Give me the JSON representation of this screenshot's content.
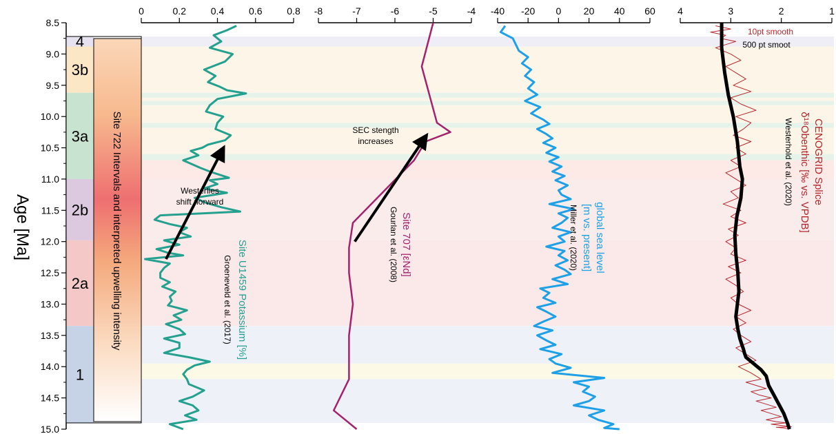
{
  "chart_data": {
    "type": "line",
    "ylabel": "Age [Ma]",
    "ylim": [
      8.5,
      15.0
    ],
    "y_ticks": [
      "8.5",
      "9.0",
      "9.5",
      "10.0",
      "10.5",
      "11.0",
      "11.5",
      "12.0",
      "12.5",
      "13.0",
      "13.5",
      "14.0",
      "14.5",
      "15.0"
    ],
    "zones": [
      {
        "label": "4",
        "from": 8.72,
        "to": 8.88,
        "color": "#e6e2ef"
      },
      {
        "label": "3b",
        "from": 8.88,
        "to": 9.62,
        "color": "#fbe6c5"
      },
      {
        "label": "3a",
        "from": 9.62,
        "to": 11.0,
        "color": "#c8e3cf"
      },
      {
        "label": "2b",
        "from": 11.0,
        "to": 11.98,
        "color": "#ddc9df"
      },
      {
        "label": "2a",
        "from": 11.98,
        "to": 13.35,
        "color": "#f4c8c6"
      },
      {
        "label": "1",
        "from": 13.35,
        "to": 14.9,
        "color": "#c6d2e6"
      }
    ],
    "intensity_bar_label": "Site 722 Intervals and interpreted upwelling intensity",
    "intensity_gradient": [
      {
        "stop": 0.0,
        "color": "#fbd7b8"
      },
      {
        "stop": 0.2,
        "color": "#f7b98e"
      },
      {
        "stop": 0.42,
        "color": "#ee6f70"
      },
      {
        "stop": 0.58,
        "color": "#f4a97c"
      },
      {
        "stop": 0.8,
        "color": "#fbdcc2"
      },
      {
        "stop": 1.0,
        "color": "#ffffff"
      }
    ],
    "panels": [
      {
        "id": "potassium",
        "ticks": [
          "0",
          "0.2",
          "0.4",
          "0.6",
          "0.8"
        ],
        "xlim": [
          0,
          0.8
        ],
        "series_label": "Site U1459 Potassium [%]",
        "citation": "Groeneveld et al. (2017)",
        "color": "#24a08f",
        "x": [
          0.5,
          0.45,
          0.38,
          0.42,
          0.36,
          0.48,
          0.44,
          0.33,
          0.39,
          0.35,
          0.41,
          0.45,
          0.55,
          0.4,
          0.36,
          0.34,
          0.43,
          0.4,
          0.39,
          0.47,
          0.44,
          0.35,
          0.32,
          0.26,
          0.3,
          0.22,
          0.28,
          0.31,
          0.36,
          0.4,
          0.46,
          0.36,
          0.4,
          0.33,
          0.45,
          0.28,
          0.34,
          0.42,
          0.52,
          0.1,
          0.07,
          0.15,
          0.24,
          0.2,
          0.26,
          0.12,
          0.2,
          0.08,
          0.14,
          0.22,
          0.02,
          0.15,
          0.12,
          0.1,
          0.1,
          0.15,
          0.11,
          0.18,
          0.15,
          0.16,
          0.14,
          0.24,
          0.17,
          0.21,
          0.13,
          0.2,
          0.23,
          0.12,
          0.2,
          0.2,
          0.12,
          0.25,
          0.36,
          0.28,
          0.24,
          0.22,
          0.24,
          0.25,
          0.33,
          0.27,
          0.2,
          0.27,
          0.3,
          0.23,
          0.29,
          0.15,
          0.22
        ],
        "y": [
          8.55,
          8.62,
          8.7,
          8.8,
          8.9,
          9.0,
          9.12,
          9.25,
          9.35,
          9.45,
          9.52,
          9.58,
          9.63,
          9.72,
          9.82,
          9.92,
          10.0,
          10.1,
          10.2,
          10.3,
          10.38,
          10.45,
          10.5,
          10.55,
          10.62,
          10.7,
          10.78,
          10.82,
          10.88,
          10.92,
          10.98,
          11.02,
          11.08,
          11.15,
          11.22,
          11.3,
          11.38,
          11.45,
          11.52,
          11.58,
          11.65,
          11.72,
          11.78,
          11.85,
          11.92,
          11.98,
          12.05,
          12.12,
          12.18,
          12.22,
          12.28,
          12.35,
          12.42,
          12.5,
          12.58,
          12.65,
          12.72,
          12.8,
          12.88,
          12.95,
          13.02,
          13.1,
          13.18,
          13.25,
          13.32,
          13.4,
          13.48,
          13.55,
          13.62,
          13.7,
          13.78,
          13.85,
          13.92,
          13.98,
          14.05,
          14.12,
          14.2,
          14.28,
          14.38,
          14.48,
          14.55,
          14.62,
          14.7,
          14.78,
          14.85,
          14.92,
          15.0
        ]
      },
      {
        "id": "end",
        "ticks": [
          "-8",
          "-7",
          "-6",
          "-5",
          "-4"
        ],
        "xlim": [
          -8,
          -4
        ],
        "series_label": "Site 707 [εNd]",
        "citation": "Gourlan et al. (2008)",
        "color": "#a3226b",
        "x": [
          -5.0,
          -5.3,
          -4.9,
          -4.55,
          -5.2,
          -5.5,
          -6.3,
          -7.1,
          -7.2,
          -7.2,
          -7.1,
          -7.2,
          -7.2,
          -7.6,
          -7.1,
          -7.0
        ],
        "y": [
          8.5,
          9.2,
          10.1,
          10.25,
          10.4,
          10.7,
          11.2,
          11.7,
          12.1,
          12.5,
          13.0,
          13.5,
          14.2,
          14.7,
          14.95,
          15.0
        ]
      },
      {
        "id": "sealevel",
        "ticks": [
          "-40",
          "-20",
          "0",
          "20",
          "40",
          "60"
        ],
        "xlim": [
          -40,
          60
        ],
        "series_label": "global sea level [m vs. present]",
        "citation": "Miller et al. (2020)",
        "color": "#1ea0e6",
        "x": [
          -35,
          -38,
          -30,
          -28,
          -26,
          -20,
          -24,
          -18,
          -22,
          -16,
          -20,
          -14,
          -22,
          -12,
          -18,
          -10,
          -6,
          -14,
          -8,
          -4,
          -10,
          -2,
          -8,
          0,
          -6,
          2,
          -4,
          4,
          -2,
          6,
          0,
          2,
          8,
          -6,
          10,
          0,
          6,
          2,
          -4,
          8,
          0,
          4,
          -8,
          4,
          0,
          6,
          -2,
          4,
          8,
          -4,
          6,
          -12,
          -6,
          -10,
          -2,
          -14,
          -8,
          -2,
          -10,
          -16,
          -4,
          -14,
          -8,
          -2,
          -12,
          2,
          -6,
          -2,
          8,
          -4,
          30,
          10,
          20,
          16,
          24,
          20,
          10,
          30,
          20,
          26,
          36,
          30,
          40
        ],
        "y": [
          8.55,
          8.65,
          8.75,
          8.85,
          8.95,
          9.05,
          9.15,
          9.25,
          9.35,
          9.45,
          9.55,
          9.65,
          9.75,
          9.85,
          9.95,
          10.05,
          10.12,
          10.2,
          10.28,
          10.35,
          10.42,
          10.5,
          10.58,
          10.65,
          10.72,
          10.8,
          10.88,
          10.95,
          11.02,
          11.1,
          11.18,
          11.25,
          11.32,
          11.4,
          11.48,
          11.55,
          11.62,
          11.7,
          11.78,
          11.85,
          11.92,
          12.0,
          12.08,
          12.15,
          12.22,
          12.3,
          12.38,
          12.45,
          12.52,
          12.6,
          12.68,
          12.75,
          12.82,
          12.9,
          12.98,
          13.05,
          13.12,
          13.2,
          13.28,
          13.35,
          13.42,
          13.5,
          13.58,
          13.65,
          13.72,
          13.8,
          13.88,
          13.95,
          14.02,
          14.1,
          14.18,
          14.25,
          14.32,
          14.4,
          14.48,
          14.55,
          14.62,
          14.7,
          14.78,
          14.85,
          14.92,
          14.98,
          15.0
        ]
      },
      {
        "id": "d18o",
        "ticks": [
          "4",
          "3",
          "2",
          "1"
        ],
        "xlim": [
          4,
          1
        ],
        "series_label_main": "CENOGRID Splice",
        "series_label_iso": "δ¹⁸Obenthic [‰ vs. VPDB]",
        "citation": "Westerhold et al. (2020)",
        "legend_red": "10pt smooth",
        "legend_black": "500 pt smoot",
        "series": [
          {
            "name": "10pt smooth",
            "color": "#b5262b",
            "x": [
              3.3,
              3.0,
              3.4,
              3.1,
              3.2,
              2.9,
              3.3,
              3.0,
              2.8,
              3.1,
              2.9,
              2.7,
              2.95,
              2.6,
              3.0,
              2.8,
              2.5,
              2.9,
              2.6,
              2.75,
              2.95,
              2.6,
              2.9,
              2.7,
              3.0,
              2.8,
              3.1,
              2.9,
              2.7,
              3.0,
              2.85,
              3.15,
              2.8,
              3.0,
              2.7,
              3.05,
              2.85,
              3.1,
              2.9,
              3.0,
              2.7,
              3.05,
              2.8,
              3.1,
              2.9,
              2.75,
              3.0,
              2.85,
              2.6,
              2.9,
              2.7,
              2.95,
              2.8,
              2.6,
              2.9,
              2.7,
              2.5,
              2.85,
              2.6,
              2.4,
              2.7,
              2.5,
              2.3,
              2.6,
              2.45,
              2.2,
              2.5,
              2.3,
              2.1,
              2.4,
              2.2,
              2.0,
              2.3,
              2.1,
              1.9,
              2.2,
              2.0,
              1.8,
              2.1,
              1.95,
              1.85
            ],
            "y": [
              8.55,
              8.6,
              8.65,
              8.7,
              8.75,
              8.8,
              8.9,
              9.0,
              9.1,
              9.2,
              9.3,
              9.4,
              9.5,
              9.6,
              9.7,
              9.8,
              9.9,
              10.0,
              10.1,
              10.2,
              10.3,
              10.4,
              10.5,
              10.6,
              10.7,
              10.8,
              10.9,
              11.0,
              11.1,
              11.2,
              11.3,
              11.4,
              11.5,
              11.6,
              11.7,
              11.8,
              11.9,
              12.0,
              12.1,
              12.2,
              12.3,
              12.4,
              12.5,
              12.6,
              12.7,
              12.8,
              12.9,
              13.0,
              13.1,
              13.2,
              13.3,
              13.4,
              13.5,
              13.6,
              13.7,
              13.8,
              13.9,
              14.0,
              14.1,
              14.2,
              14.25,
              14.3,
              14.35,
              14.4,
              14.45,
              14.5,
              14.55,
              14.6,
              14.65,
              14.7,
              14.75,
              14.8,
              14.85,
              14.88,
              14.9,
              14.92,
              14.94,
              14.96,
              14.97,
              14.98,
              15.0
            ]
          },
          {
            "name": "500 pt smoot",
            "color": "#000000",
            "x": [
              3.18,
              3.18,
              3.12,
              3.05,
              2.95,
              2.87,
              2.82,
              2.77,
              2.8,
              2.88,
              2.92,
              2.9,
              2.86,
              2.84,
              2.87,
              2.9,
              2.86,
              2.82,
              2.78,
              2.75,
              2.73,
              2.7,
              2.55,
              2.4,
              2.3,
              2.25,
              2.15,
              2.05,
              1.95,
              1.88,
              1.84
            ],
            "y": [
              8.5,
              8.9,
              9.3,
              9.65,
              10.0,
              10.4,
              10.8,
              11.0,
              11.3,
              11.6,
              11.9,
              12.2,
              12.5,
              12.8,
              13.0,
              13.2,
              13.4,
              13.55,
              13.65,
              13.72,
              13.78,
              13.85,
              13.95,
              14.05,
              14.15,
              14.3,
              14.45,
              14.6,
              14.75,
              14.9,
              15.0
            ]
          }
        ]
      }
    ],
    "annotations": [
      {
        "text_line1": "Westerlies",
        "text_line2": "shift norward",
        "arrow_from": [
          0.13,
          12.28
        ],
        "arrow_to": [
          0.42,
          10.57
        ],
        "panel": "potassium"
      },
      {
        "text_line1": "SEC stength",
        "text_line2": "increases",
        "arrow_from": [
          -7.05,
          12.0
        ],
        "arrow_to": [
          -5.25,
          10.37
        ],
        "panel": "end"
      }
    ],
    "background_bands": [
      {
        "from": 8.72,
        "to": 8.88,
        "color": "#efedf5"
      },
      {
        "from": 8.88,
        "to": 9.62,
        "color": "#fdf6e8"
      },
      {
        "from": 9.62,
        "to": 9.7,
        "color": "#e6f3ea"
      },
      {
        "from": 9.7,
        "to": 9.75,
        "color": "#fdf6e8"
      },
      {
        "from": 9.75,
        "to": 9.82,
        "color": "#e6f3ea"
      },
      {
        "from": 9.82,
        "to": 10.1,
        "color": "#fdf6e8"
      },
      {
        "from": 10.1,
        "to": 10.18,
        "color": "#e6f3ea"
      },
      {
        "from": 10.18,
        "to": 10.6,
        "color": "#fdf6e8"
      },
      {
        "from": 10.6,
        "to": 10.7,
        "color": "#e6f3ea"
      },
      {
        "from": 10.7,
        "to": 11.0,
        "color": "#fde9e6"
      },
      {
        "from": 11.0,
        "to": 11.98,
        "color": "#fbecec"
      },
      {
        "from": 11.98,
        "to": 13.35,
        "color": "#fbe9e9"
      },
      {
        "from": 13.35,
        "to": 13.95,
        "color": "#eef1f8"
      },
      {
        "from": 13.95,
        "to": 14.2,
        "color": "#fcf9e6"
      },
      {
        "from": 14.2,
        "to": 14.9,
        "color": "#eef1f8"
      }
    ]
  }
}
